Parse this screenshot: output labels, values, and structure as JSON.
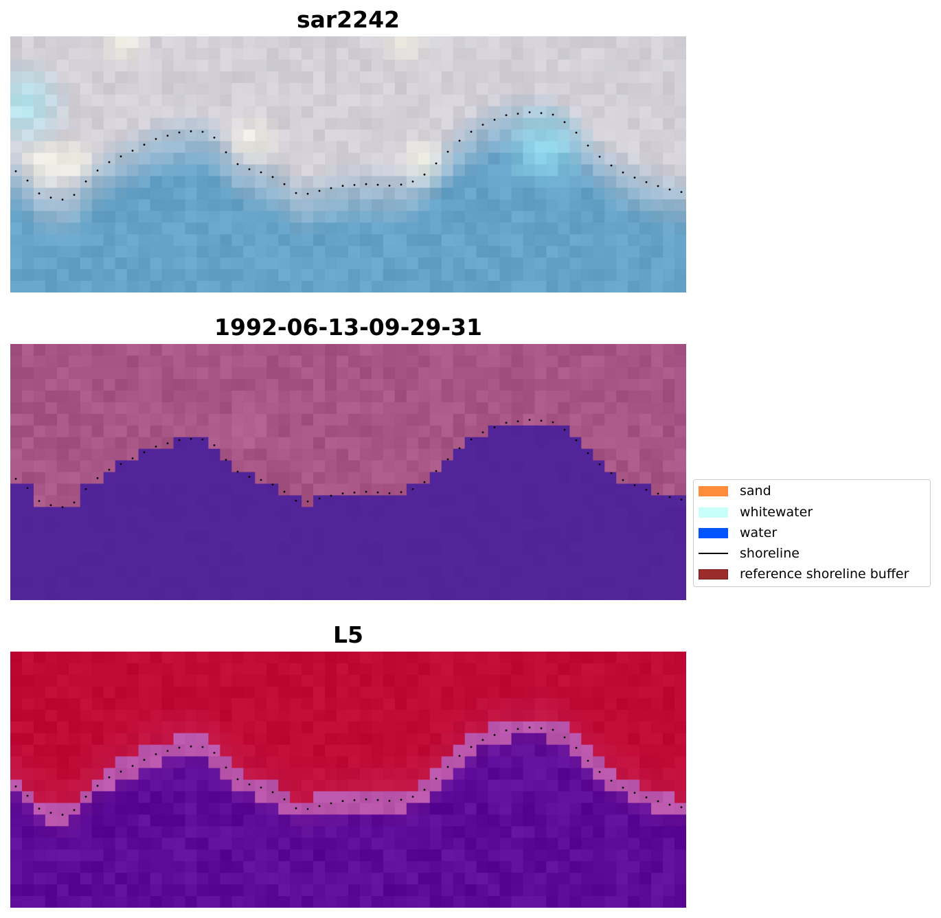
{
  "panels": [
    {
      "title": "sar2242",
      "style": "rgb"
    },
    {
      "title": "1992-06-13-09-29-31",
      "style": "classification"
    },
    {
      "title": "L5",
      "style": "probability"
    }
  ],
  "legend": {
    "items": [
      {
        "label": "sand",
        "color": "#ff8c3a",
        "kind": "patch"
      },
      {
        "label": "whitewater",
        "color": "#c8fff8",
        "kind": "patch"
      },
      {
        "label": "water",
        "color": "#0055ff",
        "kind": "patch"
      },
      {
        "label": "shoreline",
        "color": "#000000",
        "kind": "line"
      },
      {
        "label": "reference shoreline buffer",
        "color": "#9c2b2b",
        "kind": "patch"
      }
    ]
  },
  "colors": {
    "rgb_land": "#d2cfd7",
    "rgb_water": "#66a3c8",
    "class_land": "#a75584",
    "class_water": "#522499",
    "prob_land": "#c00a35",
    "prob_water": "#5c0a98",
    "shoreline": "#000000"
  }
}
